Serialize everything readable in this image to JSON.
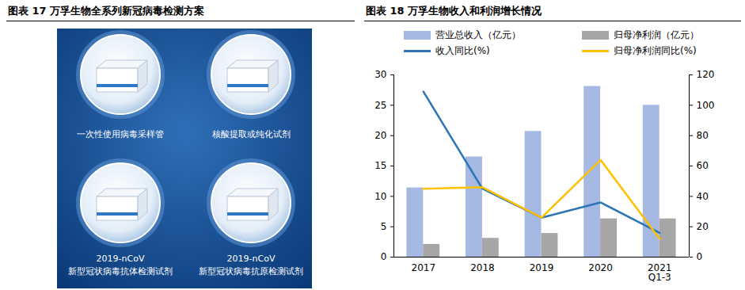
{
  "figure": {
    "title": "图表 17 万孚生物全系列新冠病毒检测方案",
    "items": [
      "一次性使用病毒采样管",
      "核酸提取或纯化试剂",
      "2019-nCoV\n新型冠状病毒抗体检测试剂",
      "2019-nCoV\n新型冠状病毒抗原检测试剂"
    ]
  },
  "chart_data": {
    "type": "bar",
    "title": "图表 18 万孚生物收入和利润增长情况",
    "categories": [
      "2017",
      "2018",
      "2019",
      "2020",
      "2021\nQ1-3"
    ],
    "series": [
      {
        "name": "营业总收入（亿元）",
        "type": "bar",
        "color": "#a5b9e2",
        "values": [
          11.4,
          16.5,
          20.7,
          28.1,
          25.0
        ]
      },
      {
        "name": "归母净利润（亿元）",
        "type": "bar",
        "color": "#a6a6a6",
        "values": [
          2.1,
          3.1,
          3.9,
          6.3,
          6.3
        ]
      },
      {
        "name": "收入同比(%)",
        "type": "line",
        "axis": "y2",
        "color": "#2e75b6",
        "values": [
          109,
          45,
          26,
          36,
          16
        ]
      },
      {
        "name": "归母净利润同比(%)",
        "type": "line",
        "axis": "y2",
        "color": "#ffc000",
        "values": [
          45,
          46,
          26,
          64,
          12
        ]
      }
    ],
    "ylim": [
      0,
      30
    ],
    "yticks": [
      0,
      5,
      10,
      15,
      20,
      25,
      30
    ],
    "y2lim": [
      0,
      120
    ],
    "y2ticks": [
      0,
      20,
      40,
      60,
      80,
      100,
      120
    ],
    "legend": "top",
    "grid": false
  }
}
